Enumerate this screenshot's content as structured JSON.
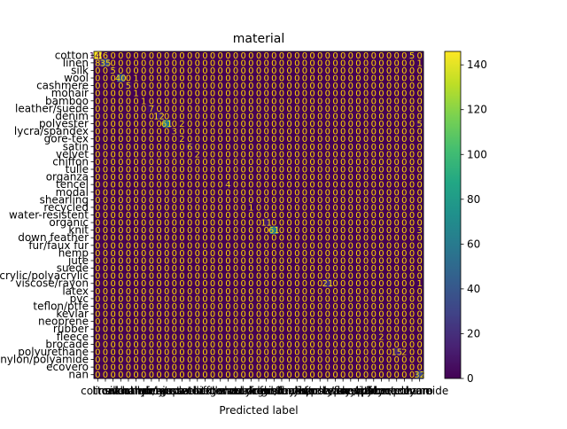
{
  "chart_data": {
    "type": "heatmap",
    "title": "material",
    "xlabel": "Predicted label",
    "ylabel": "",
    "labels": [
      "cotton",
      "linen",
      "silk",
      "wool",
      "cashmere",
      "mohair",
      "bamboo",
      "leather/suede",
      "denim",
      "polyester",
      "lycra/spandex",
      "gore-tex",
      "satin",
      "velvet",
      "chiffon",
      "tulle",
      "organza",
      "tencel",
      "modal",
      "shearling",
      "recycled",
      "water-resistent",
      "organic",
      "knit",
      "down feather",
      "fur/faux fur",
      "hemp",
      "jute",
      "suede",
      "acrylic/polyacrylic",
      "viscose/rayon",
      "latex",
      "pvc",
      "teflon/ptfe",
      "kevlar",
      "neoprene",
      "rubber",
      "fleece",
      "brocade",
      "polyurethane",
      "nylon/polyamide",
      "ecovero",
      "nan"
    ],
    "colorbar": {
      "min": 0,
      "max": 146,
      "ticks": [
        0,
        20,
        40,
        60,
        80,
        100,
        120,
        140
      ]
    },
    "colormap": "viridis",
    "text_color_low": "#ffd700",
    "text_color_high": "#440154",
    "nonzero_cells": [
      [
        0,
        0,
        146
      ],
      [
        0,
        1,
        6
      ],
      [
        0,
        41,
        5
      ],
      [
        1,
        0,
        8
      ],
      [
        1,
        1,
        35
      ],
      [
        1,
        42,
        1
      ],
      [
        2,
        2,
        5
      ],
      [
        3,
        3,
        40
      ],
      [
        3,
        5,
        1
      ],
      [
        4,
        4,
        5
      ],
      [
        5,
        5,
        1
      ],
      [
        6,
        6,
        1
      ],
      [
        7,
        7,
        7
      ],
      [
        8,
        8,
        12
      ],
      [
        9,
        9,
        61
      ],
      [
        9,
        11,
        2
      ],
      [
        9,
        42,
        5
      ],
      [
        10,
        10,
        3
      ],
      [
        11,
        11,
        2
      ],
      [
        12,
        12,
        6
      ],
      [
        13,
        13,
        2
      ],
      [
        17,
        17,
        4
      ],
      [
        20,
        20,
        1
      ],
      [
        22,
        22,
        11
      ],
      [
        23,
        23,
        61
      ],
      [
        23,
        42,
        3
      ],
      [
        30,
        30,
        21
      ],
      [
        30,
        42,
        1
      ],
      [
        37,
        37,
        2
      ],
      [
        39,
        39,
        15
      ],
      [
        39,
        40,
        2
      ],
      [
        42,
        42,
        32
      ]
    ]
  }
}
